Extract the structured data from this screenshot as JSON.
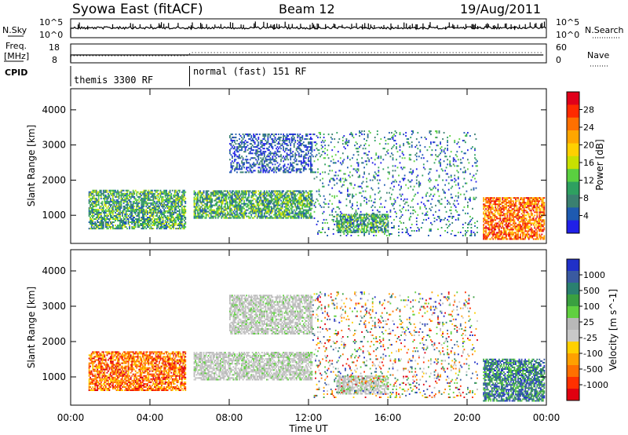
{
  "header": {
    "title": "Syowa East (fitACF)",
    "beam": "Beam 12",
    "date": "19/Aug/2011"
  },
  "summary": {
    "nsky_label": "N.Sky",
    "nsky_ticks": [
      "10^5",
      "10^0"
    ],
    "nsearch_label": "N.Search",
    "nsearch_ticks": [
      "10^5",
      "10^0"
    ],
    "freq_label_1": "Freq.",
    "freq_label_2": "[MHz]",
    "freq_ticks": [
      "18",
      "8"
    ],
    "nave_label": "Nave",
    "nave_ticks": [
      "60",
      "0"
    ],
    "cpid_label": "CPID",
    "cpid_segments": [
      {
        "label": "themis 3300 RF",
        "start_hour": 0,
        "end_hour": 6
      },
      {
        "label": "normal (fast) 151 RF",
        "start_hour": 6,
        "end_hour": 24
      }
    ]
  },
  "axes": {
    "xlabel": "Time UT",
    "ylabel": "Slant Range [km]",
    "x_ticks": [
      "00:00",
      "04:00",
      "08:00",
      "12:00",
      "16:00",
      "20:00",
      "00:00"
    ],
    "y_ticks": [
      "1000",
      "2000",
      "3000",
      "4000"
    ]
  },
  "chart_data": [
    {
      "type": "heatmap",
      "name": "power",
      "xlim": [
        0,
        24
      ],
      "ylim": [
        200,
        4600
      ],
      "x_tick_hours": [
        0,
        4,
        8,
        12,
        16,
        20,
        24
      ],
      "y_tick_values": [
        1000,
        2000,
        3000,
        4000
      ],
      "colorbar_label": "Power [dB]",
      "colorbar_ticks": [
        "28",
        "24",
        "20",
        "16",
        "12",
        "8",
        "4"
      ],
      "colorbar_colors": [
        "#e0001a",
        "#ff2a00",
        "#ff7000",
        "#ffa600",
        "#ffd000",
        "#c8e000",
        "#5ad040",
        "#2ea060",
        "#3a8070",
        "#1e5ab0",
        "#2020e8"
      ],
      "echo_regions": [
        {
          "t0": 0.9,
          "t1": 5.8,
          "r0": 600,
          "r1": 1700,
          "level": "medium"
        },
        {
          "t0": 6.2,
          "t1": 12.2,
          "r0": 900,
          "r1": 1700,
          "level": "medium"
        },
        {
          "t0": 8.0,
          "t1": 12.2,
          "r0": 2200,
          "r1": 3300,
          "level": "low"
        },
        {
          "t0": 13.4,
          "t1": 16.0,
          "r0": 500,
          "r1": 1000,
          "level": "medium"
        },
        {
          "t0": 12.2,
          "t1": 20.5,
          "r0": 400,
          "r1": 3400,
          "level": "sparse"
        },
        {
          "t0": 20.8,
          "t1": 23.9,
          "r0": 300,
          "r1": 1500,
          "level": "high"
        }
      ]
    },
    {
      "type": "heatmap",
      "name": "velocity",
      "xlim": [
        0,
        24
      ],
      "ylim": [
        200,
        4600
      ],
      "x_tick_hours": [
        0,
        4,
        8,
        12,
        16,
        20,
        24
      ],
      "y_tick_values": [
        1000,
        2000,
        3000,
        4000
      ],
      "colorbar_label": "Velocity [m s^-1]",
      "colorbar_ticks": [
        "1000",
        "500",
        "100",
        "25",
        "-25",
        "-100",
        "-500",
        "-1000"
      ],
      "colorbar_colors": [
        "#2030c8",
        "#3a5aa0",
        "#2a8070",
        "#3aa040",
        "#60d040",
        "#b8b8b8",
        "#c8c8c8",
        "#ffd000",
        "#ffa000",
        "#ff7000",
        "#ff3000",
        "#e00010"
      ],
      "echo_regions": [
        {
          "t0": 0.9,
          "t1": 5.8,
          "r0": 600,
          "r1": 1700,
          "level": "negative"
        },
        {
          "t0": 6.2,
          "t1": 12.2,
          "r0": 900,
          "r1": 1700,
          "level": "ground"
        },
        {
          "t0": 8.0,
          "t1": 12.2,
          "r0": 2200,
          "r1": 3300,
          "level": "ground"
        },
        {
          "t0": 13.4,
          "t1": 16.0,
          "r0": 500,
          "r1": 1000,
          "level": "ground"
        },
        {
          "t0": 12.2,
          "t1": 20.5,
          "r0": 400,
          "r1": 3400,
          "level": "sparse"
        },
        {
          "t0": 20.8,
          "t1": 23.9,
          "r0": 300,
          "r1": 1500,
          "level": "positive"
        }
      ]
    }
  ]
}
